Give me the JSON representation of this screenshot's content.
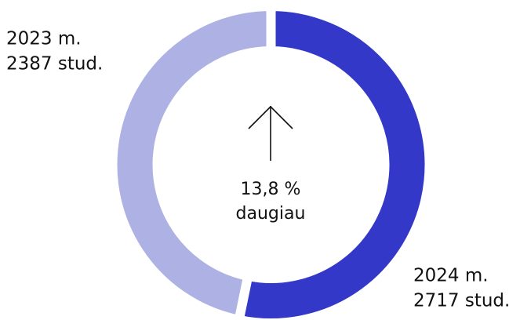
{
  "chart_data": {
    "type": "pie",
    "donut": true,
    "categories": [
      "2023 m.",
      "2024 m."
    ],
    "values": [
      2387,
      2717
    ],
    "value_labels": [
      "2387 stud.",
      "2717 stud."
    ],
    "colors": [
      "#adb1e3",
      "#3338c8"
    ],
    "annotations": [
      "13,8 %",
      "daugiau"
    ]
  }
}
